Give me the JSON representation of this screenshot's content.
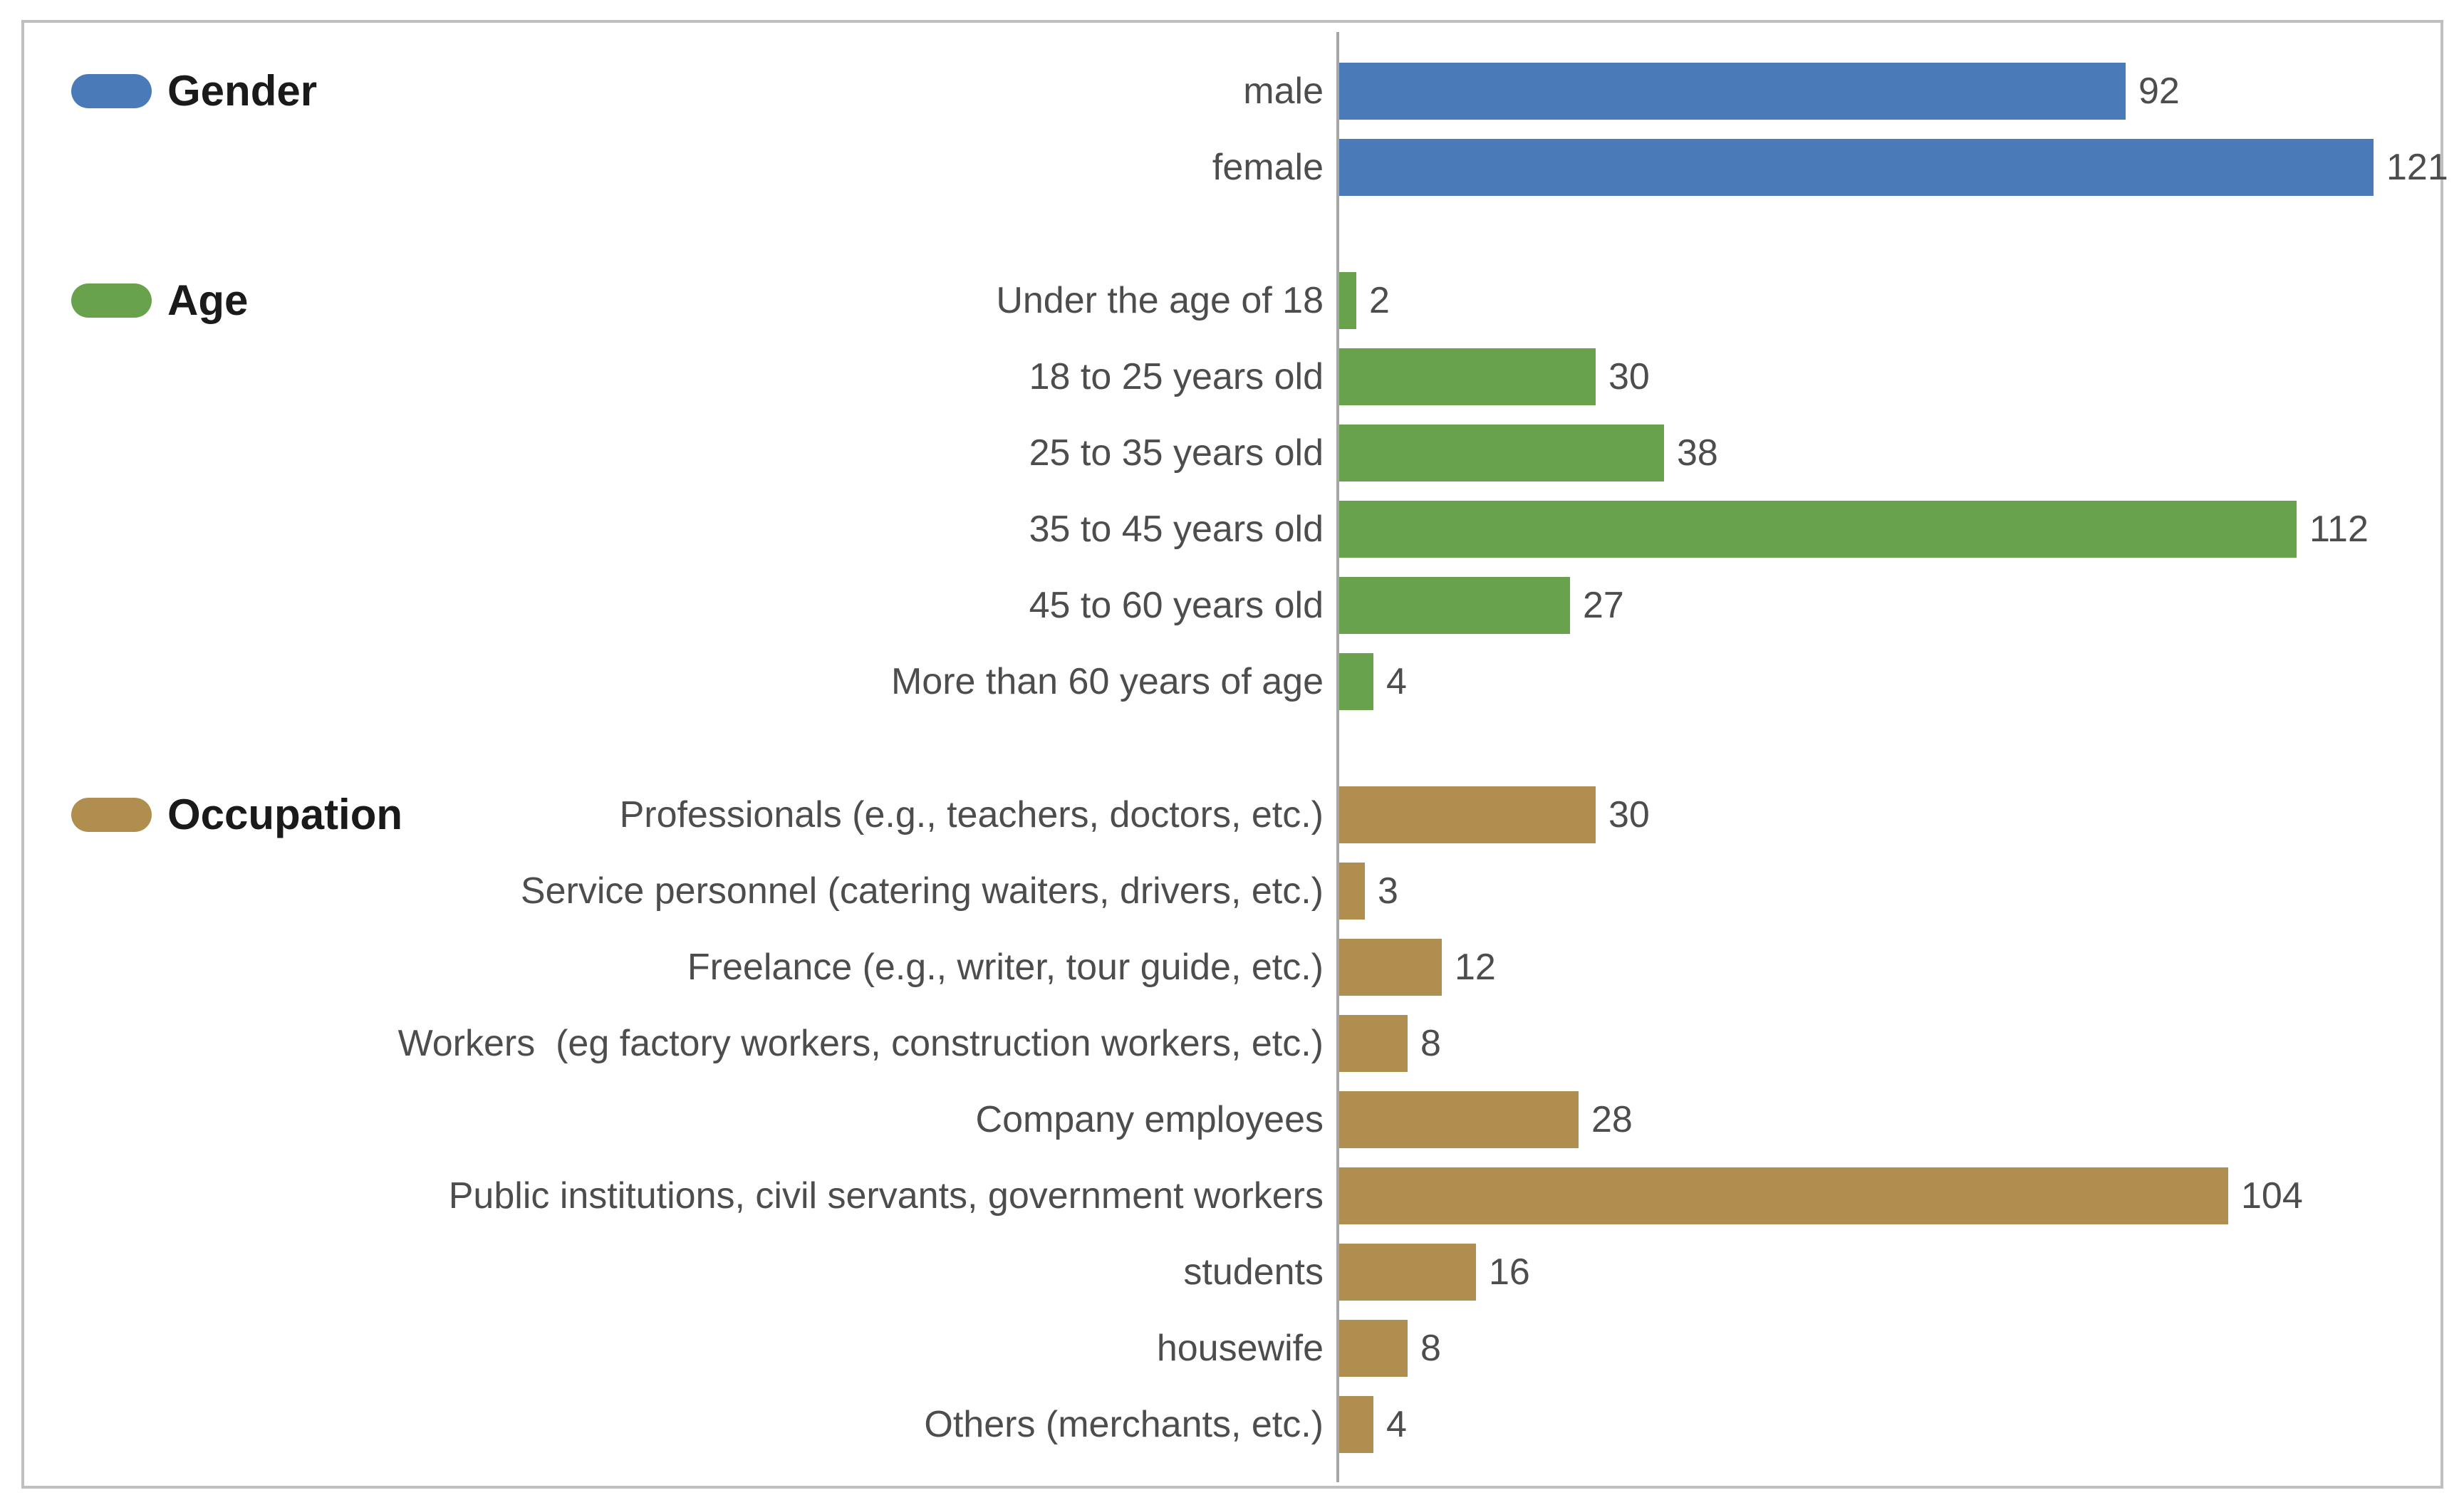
{
  "chart_data": {
    "type": "bar",
    "orientation": "horizontal",
    "title": "",
    "xlabel": "",
    "ylabel": "",
    "xlim": [
      0,
      129
    ],
    "grid": false,
    "legend_position": "left",
    "value_labels": "end-of-bar",
    "axis_line_color": "#a6a6a6",
    "frame_color": "#bfbfbf",
    "groups": [
      {
        "name": "Gender",
        "color": "#4b7ab8",
        "items": [
          {
            "label": "male",
            "value": 92
          },
          {
            "label": "female",
            "value": 121
          }
        ]
      },
      {
        "name": "Age",
        "color": "#69a24d",
        "items": [
          {
            "label": "Under the age of 18",
            "value": 2
          },
          {
            "label": "18 to 25 years old",
            "value": 30
          },
          {
            "label": "25 to 35 years old",
            "value": 38
          },
          {
            "label": "35 to 45 years old",
            "value": 112
          },
          {
            "label": "45 to 60 years old",
            "value": 27
          },
          {
            "label": "More than 60 years of age",
            "value": 4
          }
        ]
      },
      {
        "name": "Occupation",
        "color": "#b08e4f",
        "items": [
          {
            "label": "Professionals (e.g., teachers, doctors, etc.)",
            "value": 30
          },
          {
            "label": "Service personnel (catering waiters, drivers, etc.)",
            "value": 3
          },
          {
            "label": "Freelance (e.g., writer, tour guide, etc.)",
            "value": 12
          },
          {
            "label": "Workers  (eg factory workers, construction workers, etc.)",
            "value": 8
          },
          {
            "label": "Company employees",
            "value": 28
          },
          {
            "label": "Public institutions, civil servants, government workers",
            "value": 104
          },
          {
            "label": "students",
            "value": 16
          },
          {
            "label": "housewife",
            "value": 8
          },
          {
            "label": "Others (merchants, etc.)",
            "value": 4
          }
        ]
      }
    ]
  }
}
